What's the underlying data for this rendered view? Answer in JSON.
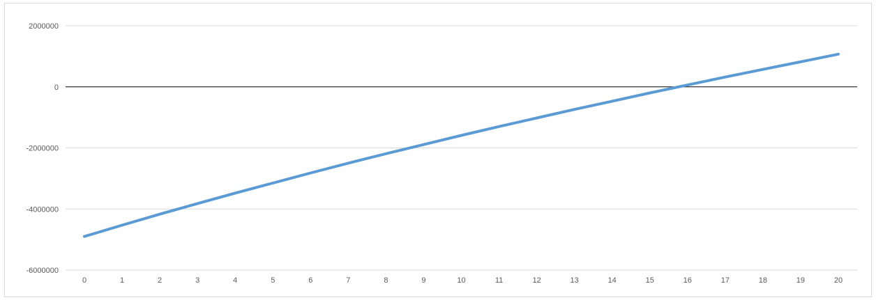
{
  "chart_data": {
    "type": "line",
    "title": "",
    "xlabel": "",
    "ylabel": "",
    "x": [
      0,
      1,
      2,
      3,
      4,
      5,
      6,
      7,
      8,
      9,
      10,
      11,
      12,
      13,
      14,
      15,
      16,
      17,
      18,
      19,
      20
    ],
    "series": [
      {
        "values": [
          -4900000,
          -4530000,
          -4170000,
          -3820000,
          -3480000,
          -3150000,
          -2820000,
          -2500000,
          -2190000,
          -1890000,
          -1590000,
          -1300000,
          -1020000,
          -740000,
          -470000,
          -200000,
          60000,
          320000,
          570000,
          820000,
          1070000
        ],
        "color": "#5b9bd5"
      }
    ],
    "ylim": [
      -6000000,
      2000000
    ],
    "yticks": [
      "2000000",
      "0",
      "-2000000",
      "-4000000",
      "-6000000"
    ],
    "xticks": [
      "0",
      "1",
      "2",
      "3",
      "4",
      "5",
      "6",
      "7",
      "8",
      "9",
      "10",
      "11",
      "12",
      "13",
      "14",
      "15",
      "16",
      "17",
      "18",
      "19",
      "20"
    ],
    "grid": true,
    "colors": {
      "gridline": "#d9d9d9",
      "zero_line": "#000000",
      "tick_text": "#595959"
    }
  }
}
